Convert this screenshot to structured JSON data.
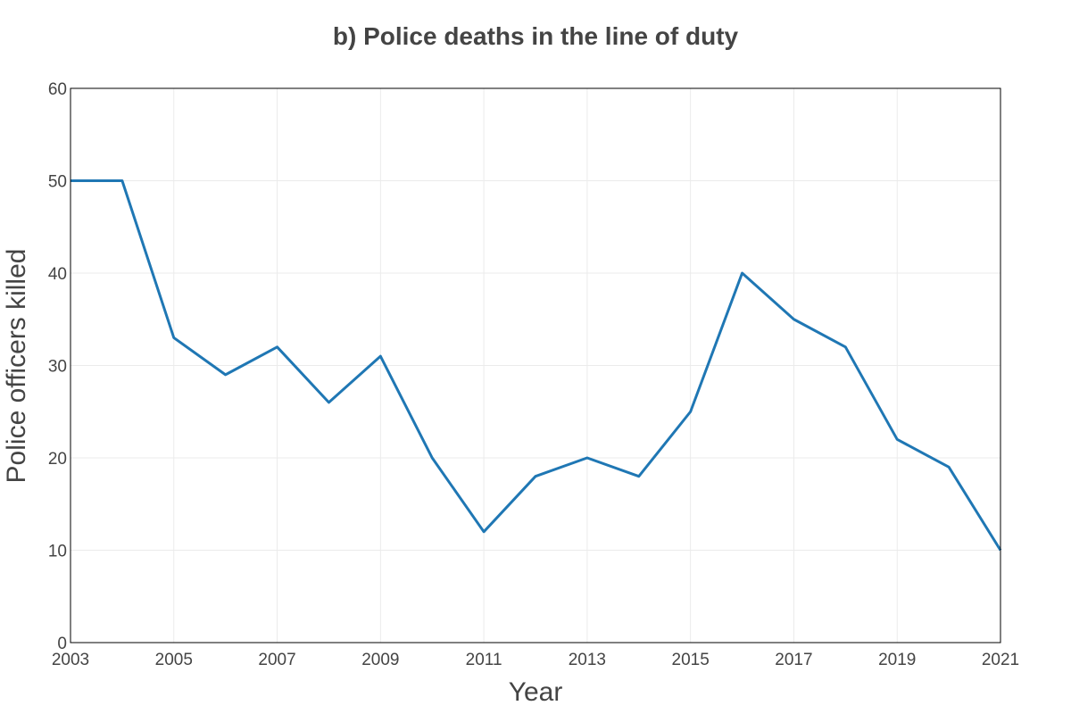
{
  "chart_data": {
    "type": "line",
    "title": "b) Police deaths in the line of duty",
    "xlabel": "Year",
    "ylabel": "Police officers killed",
    "xlim": [
      2003,
      2021
    ],
    "ylim": [
      0,
      60
    ],
    "x_ticks": [
      2003,
      2005,
      2007,
      2009,
      2011,
      2013,
      2015,
      2017,
      2019,
      2021
    ],
    "y_ticks": [
      0,
      10,
      20,
      30,
      40,
      50,
      60
    ],
    "grid": true,
    "series": [
      {
        "color": "#1f77b4",
        "x": [
          2003,
          2004,
          2005,
          2006,
          2007,
          2008,
          2009,
          2010,
          2011,
          2012,
          2013,
          2014,
          2015,
          2016,
          2017,
          2018,
          2019,
          2020,
          2021
        ],
        "y": [
          50,
          50,
          33,
          29,
          32,
          26,
          31,
          20,
          12,
          18,
          20,
          18,
          25,
          40,
          35,
          32,
          22,
          19,
          10
        ]
      }
    ]
  }
}
